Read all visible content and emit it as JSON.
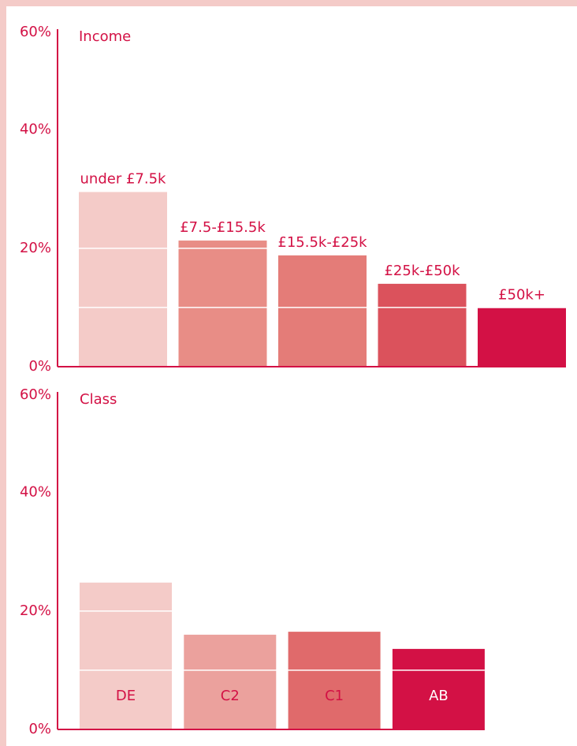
{
  "chart_data": [
    {
      "type": "bar",
      "title": "Income",
      "categories": [
        "under £7.5k",
        "£7.5-£15.5k",
        "£15.5k-£25k",
        "£25k-£50k",
        "£50k+"
      ],
      "values": [
        29.5,
        21.3,
        18.8,
        14,
        9.9
      ],
      "colors": [
        "#f4cbc8",
        "#e88d86",
        "#e47c78",
        "#db525c",
        "#d31145"
      ],
      "label_position": "above",
      "ylim": [
        0,
        57
      ],
      "yticks": [
        {
          "value": 0,
          "label": "0%"
        },
        {
          "value": 20,
          "label": "20%"
        },
        {
          "value": 40,
          "label": "40%"
        },
        {
          "value": 60,
          "label": "60%"
        }
      ],
      "gridlines": [
        10,
        20
      ]
    },
    {
      "type": "bar",
      "title": "Class",
      "categories": [
        "DE",
        "C2",
        "C1",
        "AB"
      ],
      "values": [
        24.8,
        16,
        16.5,
        13.6
      ],
      "colors": [
        "#f4cbc8",
        "#eba19d",
        "#e06a6b",
        "#d31145"
      ],
      "label_position": "inside",
      "ylim": [
        0,
        57
      ],
      "yticks": [
        {
          "value": 0,
          "label": "0%"
        },
        {
          "value": 20,
          "label": "20%"
        },
        {
          "value": 40,
          "label": "40%"
        },
        {
          "value": 60,
          "label": "60%"
        }
      ],
      "gridlines": [
        10,
        20
      ]
    }
  ]
}
